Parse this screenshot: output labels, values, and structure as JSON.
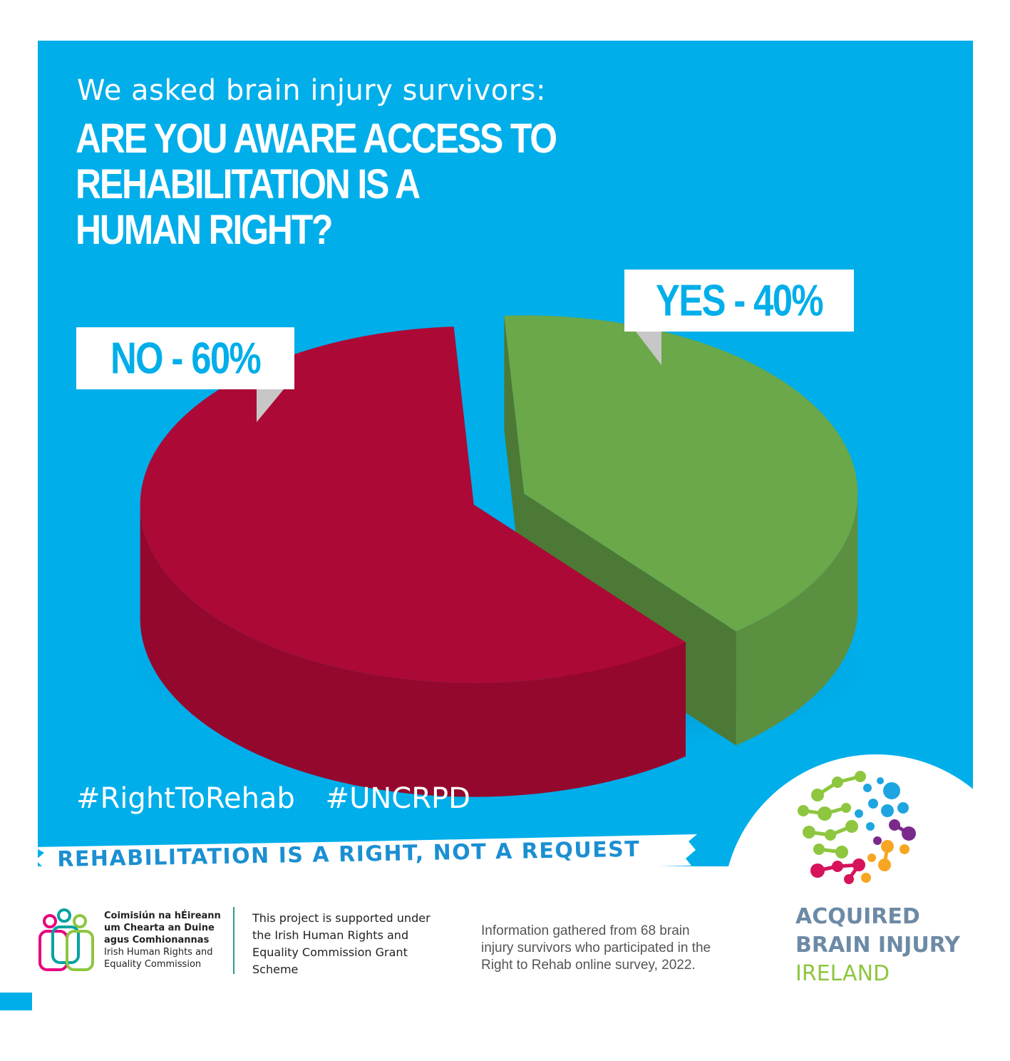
{
  "header": {
    "intro": "We asked brain injury survivors:",
    "question_lines": [
      "ARE YOU AWARE ACCESS TO",
      "REHABILITATION IS A",
      "HUMAN RIGHT?"
    ]
  },
  "chart_data": {
    "type": "pie",
    "style": "3d-exploded",
    "slices": [
      {
        "label": "NO - 60%",
        "category": "NO",
        "value": 60,
        "color": "#ad0936"
      },
      {
        "label": "YES - 40%",
        "category": "YES",
        "value": 40,
        "color": "#6aa84a"
      }
    ],
    "title": "",
    "legend": "none"
  },
  "hashtags": [
    "#RightToRehab",
    "#UNCRPD"
  ],
  "banner": "REHABILITATION IS A RIGHT, NOT A REQUEST",
  "ihrec": {
    "irish_lines": [
      "Coimisiún na hÉireann",
      "um Chearta an Duine",
      "agus Comhionannas"
    ],
    "english_lines": [
      "Irish Human Rights and",
      "Equality Commission"
    ]
  },
  "support_text": "This project is supported under the Irish Human Rights and Equality Commission Grant Scheme",
  "source_text": "Information gathered from 68 brain injury survivors who participated in the Right to Rehab online survey, 2022.",
  "abi": {
    "line1": "ACQUIRED",
    "line2": "BRAIN INJURY",
    "line3": "IRELAND"
  },
  "colors": {
    "background": "#00aeea",
    "no_slice": "#ad0936",
    "yes_slice": "#6aa84a",
    "label_text": "#00aeea"
  }
}
